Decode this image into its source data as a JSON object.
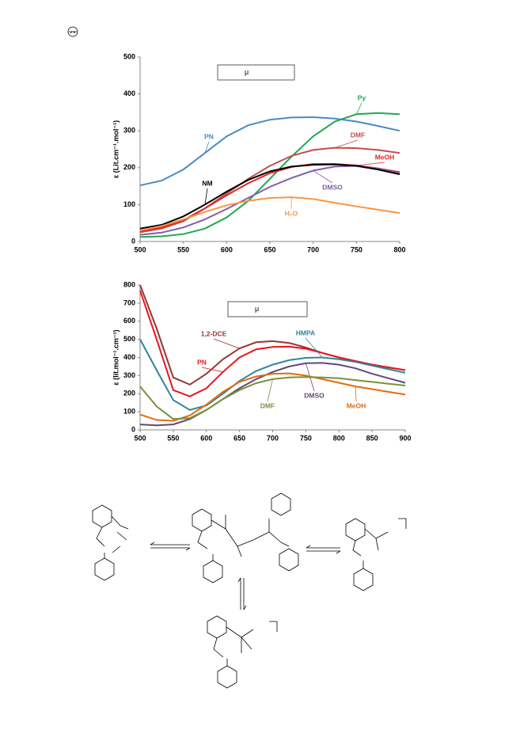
{
  "chart_data": [
    {
      "type": "line",
      "legend_text": "μ",
      "y_label": "ε (Lit.cm⁻¹.mol⁻¹)",
      "x": [
        500,
        525,
        550,
        575,
        600,
        625,
        650,
        675,
        700,
        725,
        750,
        775,
        800
      ],
      "xlim": [
        500,
        800
      ],
      "xticks": [
        500,
        550,
        600,
        650,
        700,
        750,
        800
      ],
      "ylim": [
        0,
        500
      ],
      "yticks": [
        0,
        100,
        200,
        300,
        400,
        500
      ],
      "series": [
        {
          "name": "PN",
          "color": "#4a8ac4",
          "values": [
            152,
            165,
            195,
            240,
            285,
            315,
            330,
            336,
            337,
            333,
            325,
            313,
            300
          ]
        },
        {
          "name": "Py",
          "color": "#1fa84f",
          "values": [
            12,
            14,
            20,
            35,
            65,
            110,
            170,
            230,
            285,
            325,
            345,
            348,
            345
          ]
        },
        {
          "name": "DMF",
          "color": "#c0504d",
          "values": [
            25,
            35,
            55,
            90,
            130,
            170,
            205,
            232,
            248,
            254,
            253,
            248,
            240
          ]
        },
        {
          "name": "MeOH",
          "color": "#e0262a",
          "values": [
            28,
            38,
            58,
            90,
            125,
            158,
            185,
            202,
            210,
            210,
            206,
            198,
            188
          ]
        },
        {
          "name": "DMSO",
          "color": "#7f5fa8",
          "values": [
            18,
            24,
            38,
            60,
            88,
            118,
            148,
            172,
            192,
            203,
            205,
            198,
            185
          ]
        },
        {
          "name": "NM",
          "color": "#000000",
          "values": [
            35,
            45,
            68,
            100,
            135,
            167,
            190,
            203,
            208,
            209,
            205,
            195,
            182
          ]
        },
        {
          "name": "H₂O",
          "color": "#f79646",
          "values": [
            30,
            42,
            60,
            80,
            98,
            110,
            118,
            120,
            115,
            105,
            95,
            86,
            77
          ]
        }
      ]
    },
    {
      "type": "line",
      "legend_text": "μ",
      "y_label": "ε (lit.mol⁻¹.cm⁻¹)",
      "x": [
        500,
        525,
        550,
        575,
        600,
        625,
        650,
        675,
        700,
        725,
        750,
        775,
        800,
        825,
        850,
        875,
        900
      ],
      "xlim": [
        500,
        900
      ],
      "xticks": [
        500,
        550,
        600,
        650,
        700,
        750,
        800,
        850,
        900
      ],
      "ylim": [
        0,
        800
      ],
      "yticks": [
        0,
        100,
        200,
        300,
        400,
        500,
        600,
        700,
        800
      ],
      "series": [
        {
          "name": "1,2-DCE",
          "color": "#953735",
          "values": [
            800,
            560,
            290,
            250,
            310,
            390,
            450,
            484,
            490,
            480,
            455,
            425,
            400,
            380,
            360,
            345,
            330
          ]
        },
        {
          "name": "PN",
          "color": "#e8161b",
          "values": [
            770,
            500,
            220,
            185,
            230,
            320,
            400,
            445,
            458,
            460,
            448,
            425,
            400,
            380,
            360,
            345,
            330
          ]
        },
        {
          "name": "HMPA",
          "color": "#31859c",
          "values": [
            500,
            330,
            165,
            110,
            135,
            200,
            270,
            325,
            360,
            385,
            398,
            400,
            390,
            375,
            355,
            335,
            315
          ]
        },
        {
          "name": "DMSO",
          "color": "#60497a",
          "values": [
            30,
            25,
            30,
            60,
            110,
            170,
            230,
            280,
            320,
            350,
            368,
            370,
            360,
            340,
            310,
            285,
            260
          ]
        },
        {
          "name": "MeOH",
          "color": "#e46c0a",
          "values": [
            85,
            55,
            50,
            80,
            140,
            210,
            265,
            295,
            310,
            312,
            300,
            280,
            260,
            240,
            225,
            210,
            195
          ]
        },
        {
          "name": "DMF",
          "color": "#77933c",
          "values": [
            240,
            130,
            60,
            65,
            110,
            170,
            220,
            258,
            280,
            290,
            292,
            290,
            285,
            275,
            265,
            255,
            245
          ]
        }
      ]
    }
  ]
}
